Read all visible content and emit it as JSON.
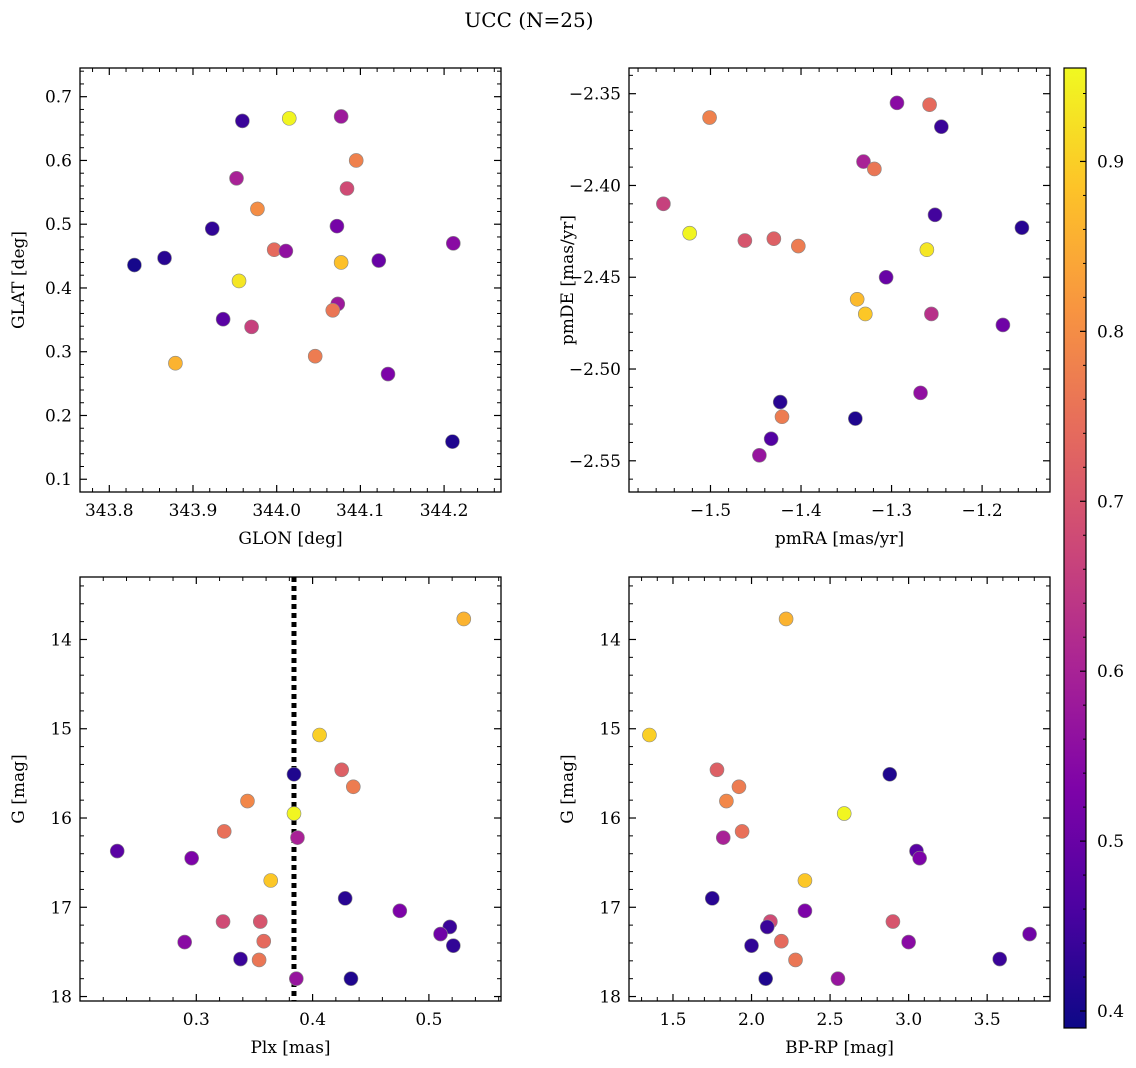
{
  "figure": {
    "title": "UCC (N=25)"
  },
  "colorbar": {
    "cmap": "plasma",
    "vmin": 0.39,
    "vmax": 0.955,
    "ticks": [
      0.4,
      0.5,
      0.6,
      0.7,
      0.8,
      0.9
    ],
    "tick_labels": [
      "0.4",
      "0.5",
      "0.6",
      "0.7",
      "0.8",
      "0.9"
    ]
  },
  "chart_data": [
    {
      "type": "scatter",
      "xlabel": "GLON [deg]",
      "ylabel": "GLAT [deg]",
      "xlim": [
        343.765,
        344.268
      ],
      "ylim": [
        0.08,
        0.745
      ],
      "y_inverted": false,
      "xticks": [
        343.8,
        343.9,
        344.0,
        344.1,
        344.2
      ],
      "xtick_labels": [
        "343.8",
        "343.9",
        "344.0",
        "344.1",
        "344.2"
      ],
      "yticks": [
        0.1,
        0.2,
        0.3,
        0.4,
        0.5,
        0.6,
        0.7
      ],
      "ytick_labels": [
        "0.1",
        "0.2",
        "0.3",
        "0.4",
        "0.5",
        "0.6",
        "0.7"
      ],
      "points": [
        {
          "x": 343.83,
          "y": 0.436,
          "c": 0.4
        },
        {
          "x": 343.866,
          "y": 0.447,
          "c": 0.42
        },
        {
          "x": 343.923,
          "y": 0.493,
          "c": 0.43
        },
        {
          "x": 343.959,
          "y": 0.662,
          "c": 0.44
        },
        {
          "x": 343.936,
          "y": 0.351,
          "c": 0.48
        },
        {
          "x": 344.077,
          "y": 0.669,
          "c": 0.58
        },
        {
          "x": 343.952,
          "y": 0.572,
          "c": 0.6
        },
        {
          "x": 344.015,
          "y": 0.666,
          "c": 0.95
        },
        {
          "x": 344.095,
          "y": 0.6,
          "c": 0.78
        },
        {
          "x": 344.084,
          "y": 0.556,
          "c": 0.68
        },
        {
          "x": 343.977,
          "y": 0.524,
          "c": 0.8
        },
        {
          "x": 344.072,
          "y": 0.497,
          "c": 0.52
        },
        {
          "x": 344.211,
          "y": 0.47,
          "c": 0.55
        },
        {
          "x": 343.997,
          "y": 0.46,
          "c": 0.74
        },
        {
          "x": 344.011,
          "y": 0.458,
          "c": 0.56
        },
        {
          "x": 344.122,
          "y": 0.443,
          "c": 0.5
        },
        {
          "x": 344.077,
          "y": 0.44,
          "c": 0.88
        },
        {
          "x": 343.955,
          "y": 0.411,
          "c": 0.93
        },
        {
          "x": 344.073,
          "y": 0.375,
          "c": 0.58
        },
        {
          "x": 344.067,
          "y": 0.365,
          "c": 0.76
        },
        {
          "x": 343.97,
          "y": 0.339,
          "c": 0.66
        },
        {
          "x": 343.879,
          "y": 0.282,
          "c": 0.86
        },
        {
          "x": 344.046,
          "y": 0.293,
          "c": 0.77
        },
        {
          "x": 344.133,
          "y": 0.265,
          "c": 0.53
        },
        {
          "x": 344.21,
          "y": 0.159,
          "c": 0.41
        }
      ]
    },
    {
      "type": "scatter",
      "xlabel": "pmRA [mas/yr]",
      "ylabel": "pmDE [mas/yr]",
      "xlim": [
        -1.59,
        -1.125
      ],
      "ylim": [
        -2.567,
        -2.336
      ],
      "y_inverted": false,
      "xticks": [
        -1.5,
        -1.4,
        -1.3,
        -1.2
      ],
      "xtick_labels": [
        "−1.5",
        "−1.4",
        "−1.3",
        "−1.2"
      ],
      "yticks": [
        -2.55,
        -2.5,
        -2.45,
        -2.4,
        -2.35
      ],
      "ytick_labels": [
        "−2.55",
        "−2.50",
        "−2.45",
        "−2.40",
        "−2.35"
      ],
      "points": [
        {
          "x": -1.501,
          "y": -2.363,
          "c": 0.78
        },
        {
          "x": -1.294,
          "y": -2.355,
          "c": 0.55
        },
        {
          "x": -1.258,
          "y": -2.356,
          "c": 0.74
        },
        {
          "x": -1.245,
          "y": -2.368,
          "c": 0.44
        },
        {
          "x": -1.331,
          "y": -2.387,
          "c": 0.6
        },
        {
          "x": -1.319,
          "y": -2.391,
          "c": 0.76
        },
        {
          "x": -1.552,
          "y": -2.41,
          "c": 0.66
        },
        {
          "x": -1.252,
          "y": -2.416,
          "c": 0.45
        },
        {
          "x": -1.156,
          "y": -2.423,
          "c": 0.42
        },
        {
          "x": -1.523,
          "y": -2.426,
          "c": 0.95
        },
        {
          "x": -1.462,
          "y": -2.43,
          "c": 0.7
        },
        {
          "x": -1.43,
          "y": -2.429,
          "c": 0.72
        },
        {
          "x": -1.403,
          "y": -2.433,
          "c": 0.77
        },
        {
          "x": -1.261,
          "y": -2.435,
          "c": 0.93
        },
        {
          "x": -1.306,
          "y": -2.45,
          "c": 0.5
        },
        {
          "x": -1.338,
          "y": -2.462,
          "c": 0.87
        },
        {
          "x": -1.329,
          "y": -2.47,
          "c": 0.89
        },
        {
          "x": -1.256,
          "y": -2.47,
          "c": 0.63
        },
        {
          "x": -1.177,
          "y": -2.476,
          "c": 0.51
        },
        {
          "x": -1.268,
          "y": -2.513,
          "c": 0.56
        },
        {
          "x": -1.423,
          "y": -2.518,
          "c": 0.42
        },
        {
          "x": -1.421,
          "y": -2.526,
          "c": 0.77
        },
        {
          "x": -1.34,
          "y": -2.527,
          "c": 0.41
        },
        {
          "x": -1.433,
          "y": -2.538,
          "c": 0.47
        },
        {
          "x": -1.446,
          "y": -2.547,
          "c": 0.57
        }
      ]
    },
    {
      "type": "scatter",
      "xlabel": "Plx [mas]",
      "ylabel": "G [mag]",
      "xlim": [
        0.2,
        0.562
      ],
      "ylim": [
        13.3,
        18.05
      ],
      "y_inverted": true,
      "xticks": [
        0.3,
        0.4,
        0.5
      ],
      "xtick_labels": [
        "0.3",
        "0.4",
        "0.5"
      ],
      "yticks": [
        14,
        15,
        16,
        17,
        18
      ],
      "ytick_labels": [
        "14",
        "15",
        "16",
        "17",
        "18"
      ],
      "vline": {
        "x": 0.384,
        "style": "dotted",
        "color": "#000000"
      },
      "points": [
        {
          "x": 0.53,
          "y": 13.77,
          "c": 0.86
        },
        {
          "x": 0.406,
          "y": 15.07,
          "c": 0.9
        },
        {
          "x": 0.425,
          "y": 15.46,
          "c": 0.72
        },
        {
          "x": 0.384,
          "y": 15.51,
          "c": 0.41
        },
        {
          "x": 0.435,
          "y": 15.65,
          "c": 0.77
        },
        {
          "x": 0.344,
          "y": 15.81,
          "c": 0.79
        },
        {
          "x": 0.384,
          "y": 15.95,
          "c": 0.95
        },
        {
          "x": 0.324,
          "y": 16.15,
          "c": 0.75
        },
        {
          "x": 0.387,
          "y": 16.22,
          "c": 0.6
        },
        {
          "x": 0.232,
          "y": 16.37,
          "c": 0.48
        },
        {
          "x": 0.296,
          "y": 16.45,
          "c": 0.53
        },
        {
          "x": 0.364,
          "y": 16.7,
          "c": 0.89
        },
        {
          "x": 0.428,
          "y": 16.9,
          "c": 0.42
        },
        {
          "x": 0.475,
          "y": 17.04,
          "c": 0.53
        },
        {
          "x": 0.323,
          "y": 17.16,
          "c": 0.68
        },
        {
          "x": 0.355,
          "y": 17.16,
          "c": 0.7
        },
        {
          "x": 0.518,
          "y": 17.22,
          "c": 0.44
        },
        {
          "x": 0.51,
          "y": 17.3,
          "c": 0.51
        },
        {
          "x": 0.29,
          "y": 17.39,
          "c": 0.55
        },
        {
          "x": 0.358,
          "y": 17.38,
          "c": 0.74
        },
        {
          "x": 0.521,
          "y": 17.43,
          "c": 0.43
        },
        {
          "x": 0.338,
          "y": 17.58,
          "c": 0.44
        },
        {
          "x": 0.354,
          "y": 17.59,
          "c": 0.76
        },
        {
          "x": 0.386,
          "y": 17.8,
          "c": 0.57
        },
        {
          "x": 0.433,
          "y": 17.8,
          "c": 0.41
        }
      ]
    },
    {
      "type": "scatter",
      "xlabel": "BP-RP [mag]",
      "ylabel": "G [mag]",
      "xlim": [
        1.22,
        3.9
      ],
      "ylim": [
        13.3,
        18.05
      ],
      "y_inverted": true,
      "xticks": [
        1.5,
        2.0,
        2.5,
        3.0,
        3.5
      ],
      "xtick_labels": [
        "1.5",
        "2.0",
        "2.5",
        "3.0",
        "3.5"
      ],
      "yticks": [
        14,
        15,
        16,
        17,
        18
      ],
      "ytick_labels": [
        "14",
        "15",
        "16",
        "17",
        "18"
      ],
      "points": [
        {
          "x": 2.22,
          "y": 13.77,
          "c": 0.86
        },
        {
          "x": 1.35,
          "y": 15.07,
          "c": 0.9
        },
        {
          "x": 1.78,
          "y": 15.46,
          "c": 0.72
        },
        {
          "x": 2.88,
          "y": 15.51,
          "c": 0.41
        },
        {
          "x": 1.92,
          "y": 15.65,
          "c": 0.77
        },
        {
          "x": 1.84,
          "y": 15.81,
          "c": 0.79
        },
        {
          "x": 2.59,
          "y": 15.95,
          "c": 0.95
        },
        {
          "x": 1.94,
          "y": 16.15,
          "c": 0.75
        },
        {
          "x": 1.82,
          "y": 16.22,
          "c": 0.6
        },
        {
          "x": 3.05,
          "y": 16.37,
          "c": 0.48
        },
        {
          "x": 3.07,
          "y": 16.45,
          "c": 0.53
        },
        {
          "x": 2.34,
          "y": 16.7,
          "c": 0.89
        },
        {
          "x": 1.75,
          "y": 16.9,
          "c": 0.42
        },
        {
          "x": 2.34,
          "y": 17.04,
          "c": 0.53
        },
        {
          "x": 2.12,
          "y": 17.16,
          "c": 0.68
        },
        {
          "x": 2.9,
          "y": 17.16,
          "c": 0.7
        },
        {
          "x": 2.1,
          "y": 17.22,
          "c": 0.44
        },
        {
          "x": 3.77,
          "y": 17.3,
          "c": 0.51
        },
        {
          "x": 3.0,
          "y": 17.39,
          "c": 0.55
        },
        {
          "x": 2.19,
          "y": 17.38,
          "c": 0.74
        },
        {
          "x": 2.0,
          "y": 17.43,
          "c": 0.43
        },
        {
          "x": 3.58,
          "y": 17.58,
          "c": 0.44
        },
        {
          "x": 2.28,
          "y": 17.59,
          "c": 0.76
        },
        {
          "x": 2.55,
          "y": 17.8,
          "c": 0.57
        },
        {
          "x": 2.09,
          "y": 17.8,
          "c": 0.41
        }
      ]
    }
  ]
}
